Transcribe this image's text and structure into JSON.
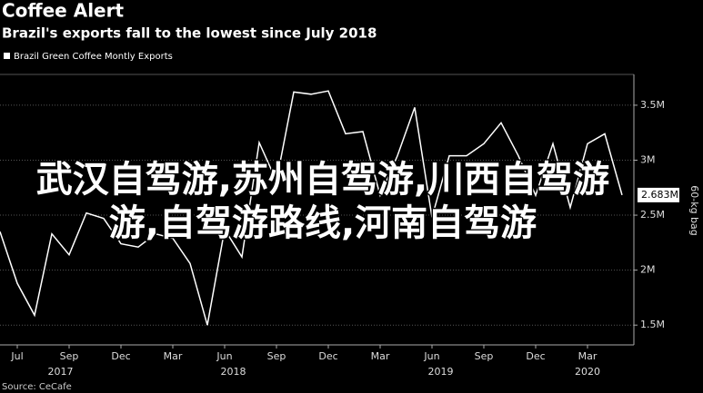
{
  "chart_data": {
    "type": "line",
    "title": "Coffee Alert",
    "subtitle": "Brazil's exports fall to the lowest since July 2018",
    "categories": [
      null,
      "Jul",
      null,
      null,
      "Sep",
      null,
      null,
      "Dec",
      null,
      null,
      "Mar",
      null,
      null,
      "Jun",
      null,
      null,
      "Sep",
      null,
      null,
      "Dec",
      null,
      null,
      "Mar",
      null,
      null,
      "Jun",
      null,
      null,
      "Sep",
      null,
      null,
      "Dec",
      null,
      null,
      "Mar",
      null,
      null
    ],
    "year_labels": [
      "2017",
      "2018",
      "2019",
      "2020"
    ],
    "series": [
      {
        "name": "Brazil Green Coffee Montly Exports",
        "color": "#ffffff",
        "values": [
          2.35,
          1.88,
          1.59,
          2.33,
          2.14,
          2.52,
          2.47,
          2.24,
          2.21,
          2.33,
          2.29,
          2.06,
          1.5,
          2.37,
          2.12,
          3.16,
          2.81,
          3.62,
          3.6,
          3.63,
          3.24,
          3.26,
          2.68,
          3.04,
          3.48,
          2.48,
          3.04,
          3.04,
          3.15,
          3.34,
          3.04,
          2.68,
          3.15,
          2.57,
          3.15,
          3.24,
          2.683
        ],
        "value_labels": [
          null,
          null,
          null,
          null,
          null,
          null,
          null,
          null,
          null,
          null,
          null,
          null,
          null,
          null,
          null,
          null,
          null,
          null,
          null,
          null,
          null,
          null,
          null,
          null,
          null,
          null,
          null,
          null,
          null,
          null,
          null,
          null,
          null,
          null,
          null,
          null,
          "2.683M"
        ]
      }
    ],
    "ylim": [
      1.32,
      3.78
    ],
    "yticks": [
      {
        "value": 1.5,
        "label": "1.5M"
      },
      {
        "value": 2,
        "label": "2M"
      },
      {
        "value": 2.5,
        "label": "2.5M"
      },
      {
        "value": 3,
        "label": "3M"
      },
      {
        "value": 3.5,
        "label": "3.5M"
      }
    ],
    "y_axis_label": "60-kg bag",
    "grid": true,
    "source": "Source: CeCafe",
    "overlay_text": [
      "武汉自驾游,苏州自驾游,川西自驾游",
      "游,自驾游路线,河南自驾游"
    ]
  }
}
